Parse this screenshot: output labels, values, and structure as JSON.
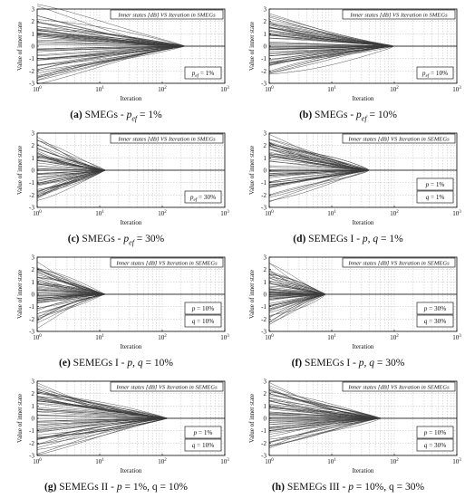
{
  "figure": {
    "panels": [
      {
        "id": "a",
        "letter": "(a)",
        "caption": "SMEGs - p_ef = 1%",
        "caption_parts": [
          "SMEGs - ",
          "p",
          "ef",
          " = 1%"
        ],
        "title": "Inner states [dB] VS Iteration in SMEGs",
        "legend": [
          "p_ef = 1%"
        ],
        "legend_parts": [
          [
            "p",
            "ef",
            " = 1%"
          ]
        ],
        "spread": 3.0,
        "converge_iter": 230
      },
      {
        "id": "b",
        "letter": "(b)",
        "caption": "SMEGs - p_ef = 10%",
        "caption_parts": [
          "SMEGs - ",
          "p",
          "ef",
          " = 10%"
        ],
        "title": "Inner states [dB] VS Iteration in SMEGs",
        "legend": [
          "p_ef = 10%"
        ],
        "legend_parts": [
          [
            "p",
            "ef",
            " = 10%"
          ]
        ],
        "spread": 2.6,
        "converge_iter": 100
      },
      {
        "id": "c",
        "letter": "(c)",
        "caption": "SMEGs - p_ef = 30%",
        "caption_parts": [
          "SMEGs - ",
          "p",
          "ef",
          " = 30%"
        ],
        "title": "Inner states [dB] VS Iteration in SMEGs",
        "legend": [
          "p_ef = 30%"
        ],
        "legend_parts": [
          [
            "p",
            "ef",
            " = 30%"
          ]
        ],
        "spread": 2.4,
        "converge_iter": 12
      },
      {
        "id": "d",
        "letter": "(d)",
        "caption": "SEMEGs I - p, q = 1%",
        "caption_parts": [
          "SEMEGs I - ",
          "p, q",
          "",
          " = 1%"
        ],
        "title": "Inner states [dB] VS Iteration in SEMEGs",
        "legend": [
          "p = 1%",
          "q = 1%"
        ],
        "legend_parts": [
          [
            "p",
            "",
            " = 1%"
          ],
          [
            "q",
            "",
            " = 1%"
          ]
        ],
        "spread": 2.6,
        "converge_iter": 40
      },
      {
        "id": "e",
        "letter": "(e)",
        "caption": "SEMEGs I - p, q = 10%",
        "caption_parts": [
          "SEMEGs I - ",
          "p, q",
          "",
          " = 10%"
        ],
        "title": "Inner states [dB] VS Iteration in SEMEGs",
        "legend": [
          "p = 10%",
          "q = 10%"
        ],
        "legend_parts": [
          [
            "p",
            "",
            " = 10%"
          ],
          [
            "q",
            "",
            " = 10%"
          ]
        ],
        "spread": 2.5,
        "converge_iter": 12
      },
      {
        "id": "f",
        "letter": "(f)",
        "caption": "SEMEGs I - p, q = 30%",
        "caption_parts": [
          "SEMEGs I - ",
          "p, q",
          "",
          " = 30%"
        ],
        "title": "Inner states [dB] VS Iteration in SEMEGs",
        "legend": [
          "p = 30%",
          "q = 30%"
        ],
        "legend_parts": [
          [
            "p",
            "",
            " = 30%"
          ],
          [
            "q",
            "",
            " = 30%"
          ]
        ],
        "spread": 2.3,
        "converge_iter": 8
      },
      {
        "id": "g",
        "letter": "(g)",
        "caption": "SEMEGs II - p = 1%, q = 10%",
        "caption_parts": [
          "SEMEGs II - ",
          "p",
          "",
          " = 1%, q = 10%"
        ],
        "title": "Inner states [dB] VS Iteration in SEMEGs",
        "legend": [
          "p = 1%",
          "q = 10%"
        ],
        "legend_parts": [
          [
            "p",
            "",
            " = 1%"
          ],
          [
            "q",
            "",
            " = 10%"
          ]
        ],
        "spread": 2.7,
        "converge_iter": 120
      },
      {
        "id": "h",
        "letter": "(h)",
        "caption": "SEMEGs III - p = 10%, q = 30%",
        "caption_parts": [
          "SEMEGs III - ",
          "p",
          "",
          " = 10%, q = 30%"
        ],
        "title": "Inner states [dB] VS Iteration in SEMEGs",
        "legend": [
          "p = 10%",
          "q = 30%"
        ],
        "legend_parts": [
          [
            "p",
            "",
            " = 10%"
          ],
          [
            "q",
            "",
            " = 30%"
          ]
        ],
        "spread": 2.6,
        "converge_iter": 60
      }
    ]
  },
  "chart_data": [
    {
      "type": "line",
      "panel": "a",
      "title": "Inner states [dB] VS Iteration in SMEGs",
      "xlabel": "Iteration",
      "ylabel": "Value of inner state",
      "xscale": "log",
      "xlim": [
        1,
        1000
      ],
      "ylim": [
        -3,
        3
      ],
      "xticks": [
        "10^0",
        "10^1",
        "10^2",
        "10^3"
      ],
      "yticks": [
        -3,
        -2,
        -1,
        0,
        1,
        2,
        3
      ],
      "grid": true,
      "legend": [
        "p_ef = 1%"
      ],
      "series_description": "many inner-state trajectories starting between about -3 and 3, converging to 0",
      "converge_at": 230
    },
    {
      "type": "line",
      "panel": "b",
      "title": "Inner states [dB] VS Iteration in SMEGs",
      "xlabel": "Iteration",
      "ylabel": "Value of inner state",
      "xscale": "log",
      "xlim": [
        1,
        1000
      ],
      "ylim": [
        -3,
        3
      ],
      "yticks": [
        -3,
        -2,
        -1,
        0,
        1,
        2,
        3
      ],
      "grid": true,
      "legend": [
        "p_ef = 10%"
      ],
      "converge_at": 100
    },
    {
      "type": "line",
      "panel": "c",
      "title": "Inner states [dB] VS Iteration in SMEGs",
      "xlabel": "Iteration",
      "ylabel": "Value of inner state",
      "xscale": "log",
      "xlim": [
        1,
        1000
      ],
      "ylim": [
        -3,
        3
      ],
      "yticks": [
        -3,
        -2,
        -1,
        0,
        1,
        2,
        3
      ],
      "grid": true,
      "legend": [
        "p_ef = 30%"
      ],
      "converge_at": 12
    },
    {
      "type": "line",
      "panel": "d",
      "title": "Inner states [dB] VS Iteration in SEMEGs",
      "xlabel": "Iteration",
      "ylabel": "Value of inner state",
      "xscale": "log",
      "xlim": [
        1,
        1000
      ],
      "ylim": [
        -3,
        3
      ],
      "yticks": [
        -3,
        -2,
        -1,
        0,
        1,
        2,
        3
      ],
      "grid": true,
      "legend": [
        "p = 1%",
        "q = 1%"
      ],
      "converge_at": 40
    },
    {
      "type": "line",
      "panel": "e",
      "title": "Inner states [dB] VS Iteration in SEMEGs",
      "xlabel": "Iteration",
      "ylabel": "Value of inner state",
      "xscale": "log",
      "xlim": [
        1,
        1000
      ],
      "ylim": [
        -3,
        3
      ],
      "yticks": [
        -3,
        -2,
        -1,
        0,
        1,
        2,
        3
      ],
      "grid": true,
      "legend": [
        "p = 10%",
        "q = 10%"
      ],
      "converge_at": 12
    },
    {
      "type": "line",
      "panel": "f",
      "title": "Inner states [dB] VS Iteration in SEMEGs",
      "xlabel": "Iteration",
      "ylabel": "Value of inner state",
      "xscale": "log",
      "xlim": [
        1,
        1000
      ],
      "ylim": [
        -3,
        3
      ],
      "yticks": [
        -3,
        -2,
        -1,
        0,
        1,
        2,
        3
      ],
      "grid": true,
      "legend": [
        "p = 30%",
        "q = 30%"
      ],
      "converge_at": 8
    },
    {
      "type": "line",
      "panel": "g",
      "title": "Inner states [dB] VS Iteration in SEMEGs",
      "xlabel": "Iteration",
      "ylabel": "Value of inner state",
      "xscale": "log",
      "xlim": [
        1,
        1000
      ],
      "ylim": [
        -3,
        3
      ],
      "yticks": [
        -3,
        -2,
        -1,
        0,
        1,
        2,
        3
      ],
      "grid": true,
      "legend": [
        "p = 1%",
        "q = 10%"
      ],
      "converge_at": 120
    },
    {
      "type": "line",
      "panel": "h",
      "title": "Inner states [dB] VS Iteration in SEMEGs",
      "xlabel": "Iteration",
      "ylabel": "Value of inner state",
      "xscale": "log",
      "xlim": [
        1,
        1000
      ],
      "ylim": [
        -3,
        3
      ],
      "yticks": [
        -3,
        -2,
        -1,
        0,
        1,
        2,
        3
      ],
      "grid": true,
      "legend": [
        "p = 10%",
        "q = 30%"
      ],
      "converge_at": 60
    }
  ],
  "axes": {
    "xlabel": "Iteration",
    "ylabel": "Value of inner state",
    "yticks": [
      "3",
      "2",
      "1",
      "0",
      "-1",
      "-2",
      "-3"
    ],
    "xtick_base": "10",
    "xtick_exps": [
      "0",
      "1",
      "2",
      "3"
    ]
  },
  "colors": {
    "lines": "#3a3a3a",
    "grid": "#c8c8c8",
    "axis": "#000000",
    "background": "#ffffff"
  }
}
